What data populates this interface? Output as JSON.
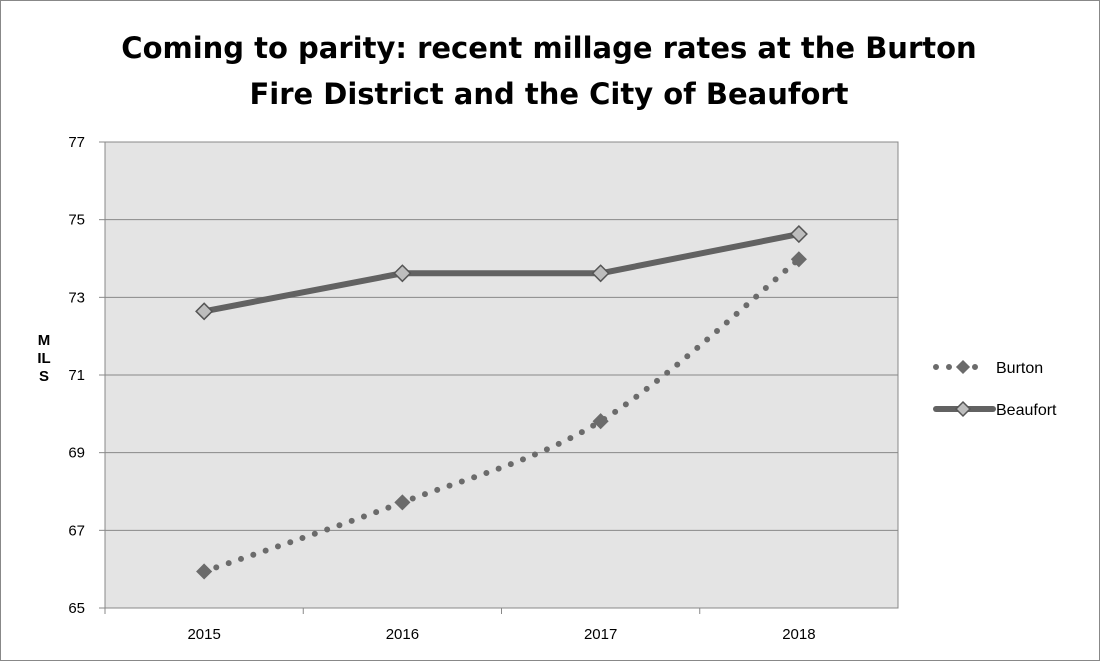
{
  "chart_data": {
    "type": "line",
    "title": [
      "Coming to parity: recent millage rates at the Burton",
      "Fire District and the City of Beaufort"
    ],
    "xlabel": "",
    "ylabel": "MILS",
    "categories": [
      "2015",
      "2016",
      "2017",
      "2018"
    ],
    "ylim": [
      65,
      77
    ],
    "yticks": [
      65,
      67,
      69,
      71,
      73,
      75,
      77
    ],
    "grid": true,
    "legend": "right",
    "series": [
      {
        "name": "Burton",
        "values": [
          65.94,
          67.72,
          69.81,
          73.98
        ],
        "style": "dotted",
        "smooth": true,
        "color": "#6b6b6b"
      },
      {
        "name": "Beaufort",
        "values": [
          72.64,
          73.62,
          73.62,
          74.63
        ],
        "style": "solid",
        "smooth": false,
        "color": "#626262",
        "marker_fill": "#bdbdbd"
      }
    ],
    "plot_background": "#e4e4e4"
  }
}
